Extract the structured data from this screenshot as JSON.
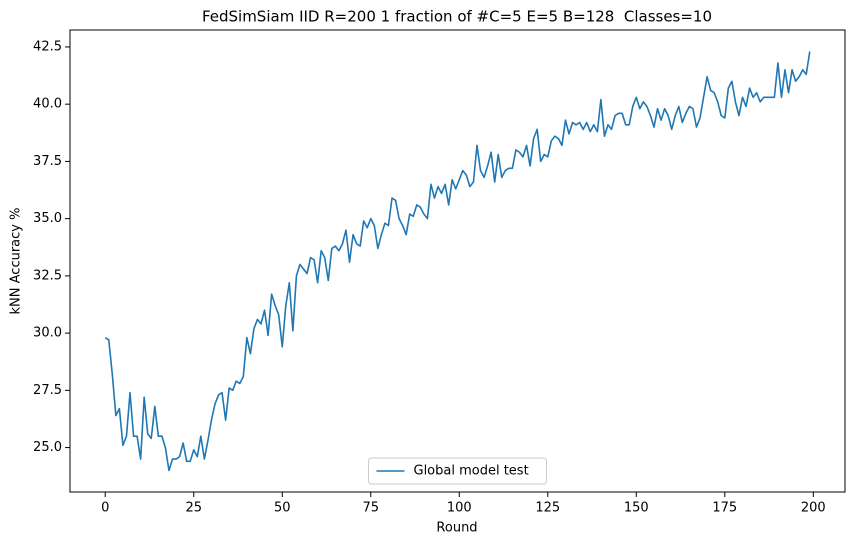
{
  "chart_data": {
    "type": "line",
    "title": "FedSimSiam IID R=200 1 fraction of #C=5 E=5 B=128  Classes=10",
    "x_label": "Round",
    "y_label": "kNN Accuracy %",
    "x": [
      0,
      1,
      2,
      3,
      4,
      5,
      6,
      7,
      8,
      9,
      10,
      11,
      12,
      13,
      14,
      15,
      16,
      17,
      18,
      19,
      20,
      21,
      22,
      23,
      24,
      25,
      26,
      27,
      28,
      29,
      30,
      31,
      32,
      33,
      34,
      35,
      36,
      37,
      38,
      39,
      40,
      41,
      42,
      43,
      44,
      45,
      46,
      47,
      48,
      49,
      50,
      51,
      52,
      53,
      54,
      55,
      56,
      57,
      58,
      59,
      60,
      61,
      62,
      63,
      64,
      65,
      66,
      67,
      68,
      69,
      70,
      71,
      72,
      73,
      74,
      75,
      76,
      77,
      78,
      79,
      80,
      81,
      82,
      83,
      84,
      85,
      86,
      87,
      88,
      89,
      90,
      91,
      92,
      93,
      94,
      95,
      96,
      97,
      98,
      99,
      100,
      101,
      102,
      103,
      104,
      105,
      106,
      107,
      108,
      109,
      110,
      111,
      112,
      113,
      114,
      115,
      116,
      117,
      118,
      119,
      120,
      121,
      122,
      123,
      124,
      125,
      126,
      127,
      128,
      129,
      130,
      131,
      132,
      133,
      134,
      135,
      136,
      137,
      138,
      139,
      140,
      141,
      142,
      143,
      144,
      145,
      146,
      147,
      148,
      149,
      150,
      151,
      152,
      153,
      154,
      155,
      156,
      157,
      158,
      159,
      160,
      161,
      162,
      163,
      164,
      165,
      166,
      167,
      168,
      169,
      170,
      171,
      172,
      173,
      174,
      175,
      176,
      177,
      178,
      179,
      180,
      181,
      182,
      183,
      184,
      185,
      186,
      187,
      188,
      189,
      190,
      191,
      192,
      193,
      194,
      195,
      196,
      197,
      198,
      199
    ],
    "series": [
      {
        "name": "Global model test",
        "color": "#1f77b4",
        "values": [
          29.8,
          29.7,
          28.2,
          26.4,
          26.7,
          25.1,
          25.5,
          27.4,
          25.5,
          25.5,
          24.5,
          27.2,
          25.6,
          25.4,
          26.8,
          25.5,
          25.5,
          25.0,
          24.0,
          24.5,
          24.5,
          24.6,
          25.2,
          24.4,
          24.4,
          24.9,
          24.6,
          25.5,
          24.5,
          25.3,
          26.2,
          26.9,
          27.3,
          27.4,
          26.2,
          27.6,
          27.5,
          27.9,
          27.8,
          28.1,
          29.8,
          29.1,
          30.2,
          30.6,
          30.4,
          31.0,
          29.9,
          31.7,
          31.2,
          30.8,
          29.4,
          31.2,
          32.2,
          30.1,
          32.5,
          33.0,
          32.8,
          32.6,
          33.3,
          33.2,
          32.2,
          33.6,
          33.3,
          32.3,
          33.7,
          33.8,
          33.6,
          33.9,
          34.5,
          33.1,
          34.3,
          33.9,
          33.8,
          34.9,
          34.6,
          35.0,
          34.7,
          33.7,
          34.3,
          34.8,
          34.7,
          35.9,
          35.8,
          35.0,
          34.7,
          34.3,
          35.2,
          35.1,
          35.6,
          35.5,
          35.2,
          35.0,
          36.5,
          35.9,
          36.4,
          36.1,
          36.5,
          35.6,
          36.7,
          36.3,
          36.7,
          37.1,
          36.9,
          36.4,
          36.6,
          38.2,
          37.1,
          36.8,
          37.3,
          37.9,
          36.6,
          37.8,
          36.8,
          37.1,
          37.2,
          37.2,
          38.0,
          37.9,
          37.7,
          38.2,
          37.3,
          38.5,
          38.9,
          37.5,
          37.8,
          37.7,
          38.4,
          38.6,
          38.5,
          38.2,
          39.3,
          38.7,
          39.2,
          39.1,
          39.2,
          38.9,
          39.2,
          38.8,
          39.1,
          38.8,
          40.2,
          38.6,
          39.1,
          38.9,
          39.5,
          39.6,
          39.6,
          39.1,
          39.1,
          39.9,
          40.3,
          39.8,
          40.1,
          39.9,
          39.5,
          39.0,
          39.8,
          39.3,
          39.8,
          39.5,
          38.9,
          39.5,
          39.9,
          39.2,
          39.6,
          39.9,
          39.8,
          39.0,
          39.4,
          40.3,
          41.2,
          40.6,
          40.5,
          40.1,
          39.5,
          39.4,
          40.7,
          41.0,
          40.1,
          39.5,
          40.3,
          39.9,
          40.7,
          40.3,
          40.5,
          40.1,
          40.3,
          40.3,
          40.3,
          40.3,
          41.8,
          40.3,
          41.5,
          40.5,
          41.5,
          41.0,
          41.2,
          41.5,
          41.3,
          42.3
        ]
      }
    ],
    "xlim": [
      -9.95,
      208.95
    ],
    "ylim": [
      23.06,
      43.24
    ],
    "xticks": [
      0,
      25,
      50,
      75,
      100,
      125,
      150,
      175,
      200
    ],
    "yticks": [
      {
        "value": 25,
        "label": "25.0"
      },
      27.5,
      {
        "value": 30,
        "label": "30.0"
      },
      32.5,
      {
        "value": 35,
        "label": "35.0"
      },
      37.5,
      {
        "value": 40,
        "label": "40.0"
      },
      42.5
    ],
    "legend": "lower center"
  }
}
